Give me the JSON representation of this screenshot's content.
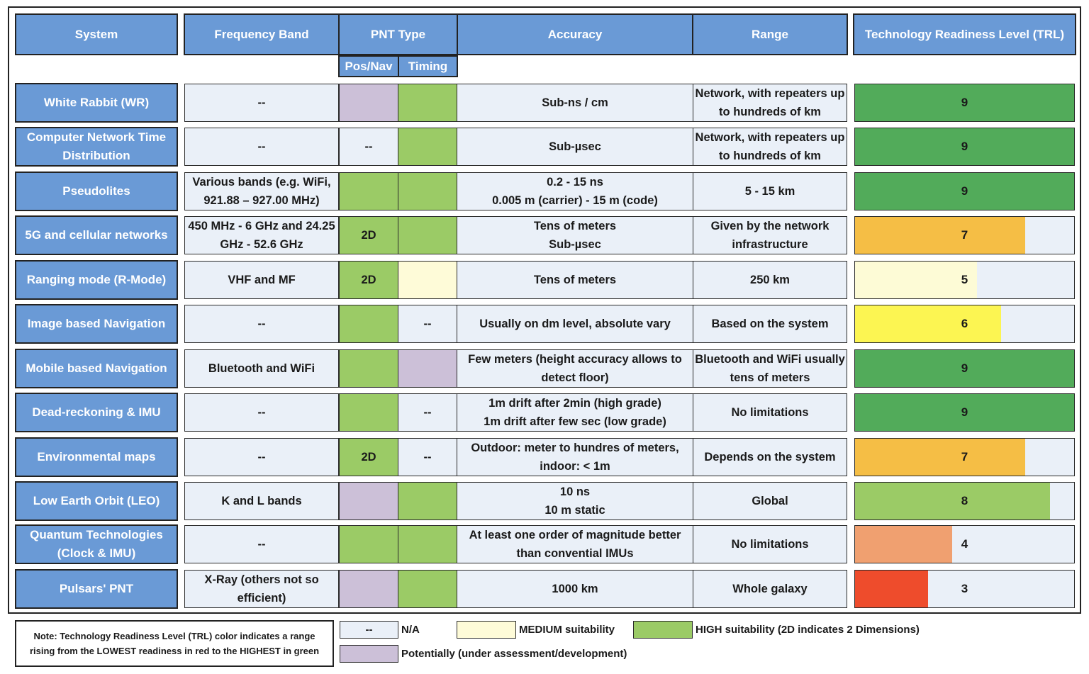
{
  "headers": {
    "system": "System",
    "frequency": "Frequency Band",
    "pnt_type": "PNT Type",
    "pos_nav": "Pos/Nav",
    "timing": "Timing",
    "accuracy": "Accuracy",
    "range": "Range",
    "trl": "Technology Readiness Level (TRL)"
  },
  "colors": {
    "na": "#eaf0f8",
    "medium": "#fefbd8",
    "high": "#9bcb66",
    "potential": "#ccc0d8",
    "header": "#6a9ad6"
  },
  "rows": [
    {
      "system": "White Rabbit (WR)",
      "frequency": "--",
      "pos": {
        "s": "potential",
        "t": ""
      },
      "timing": {
        "s": "high",
        "t": ""
      },
      "accuracy": "Sub-ns / cm",
      "range": "Network, with repeaters up to hundreds of km",
      "trl": 9,
      "trl_color": "#52ab5a"
    },
    {
      "system": "Computer Network Time Distribution",
      "frequency": "--",
      "pos": {
        "s": "na",
        "t": "--"
      },
      "timing": {
        "s": "high",
        "t": ""
      },
      "accuracy": "Sub-µsec",
      "range": "Network, with repeaters up to hundreds of km",
      "trl": 9,
      "trl_color": "#52ab5a"
    },
    {
      "system": "Pseudolites",
      "frequency": "Various bands (e.g. WiFi, 921.88 – 927.00 MHz)",
      "pos": {
        "s": "high",
        "t": ""
      },
      "timing": {
        "s": "high",
        "t": ""
      },
      "accuracy": "0.2 - 15 ns\n0.005 m (carrier) - 15 m (code)",
      "range": "5 - 15 km",
      "trl": 9,
      "trl_color": "#52ab5a"
    },
    {
      "system": "5G and cellular networks",
      "frequency": "450 MHz - 6 GHz and 24.25 GHz - 52.6 GHz",
      "pos": {
        "s": "high",
        "t": "2D"
      },
      "timing": {
        "s": "high",
        "t": ""
      },
      "accuracy": "Tens of meters\nSub-µsec",
      "range": "Given by the network infrastructure",
      "trl": 7,
      "trl_color": "#f5be45"
    },
    {
      "system": "Ranging mode (R-Mode)",
      "frequency": "VHF and MF",
      "pos": {
        "s": "high",
        "t": "2D"
      },
      "timing": {
        "s": "medium",
        "t": ""
      },
      "accuracy": "Tens of meters",
      "range": "250 km",
      "trl": 5,
      "trl_color": "#fdfbd6"
    },
    {
      "system": "Image based Navigation",
      "frequency": "--",
      "pos": {
        "s": "high",
        "t": ""
      },
      "timing": {
        "s": "na",
        "t": "--"
      },
      "accuracy": "Usually on dm level, absolute vary",
      "range": "Based on the system",
      "trl": 6,
      "trl_color": "#fcf552"
    },
    {
      "system": "Mobile based Navigation",
      "frequency": "Bluetooth and WiFi",
      "pos": {
        "s": "high",
        "t": ""
      },
      "timing": {
        "s": "potential",
        "t": ""
      },
      "accuracy": "Few meters (height accuracy allows to detect floor)",
      "range": "Bluetooth and WiFi usually tens of meters",
      "trl": 9,
      "trl_color": "#52ab5a"
    },
    {
      "system": "Dead-reckoning  & IMU",
      "frequency": "--",
      "pos": {
        "s": "high",
        "t": ""
      },
      "timing": {
        "s": "na",
        "t": "--"
      },
      "accuracy": "1m drift after 2min (high grade)\n1m drift after few sec (low grade)",
      "range": "No limitations",
      "trl": 9,
      "trl_color": "#52ab5a"
    },
    {
      "system": "Environmental maps",
      "frequency": "--",
      "pos": {
        "s": "high",
        "t": "2D"
      },
      "timing": {
        "s": "na",
        "t": "--"
      },
      "accuracy": "Outdoor: meter to hundres of meters,\nindoor: < 1m",
      "range": "Depends on the system",
      "trl": 7,
      "trl_color": "#f5be45"
    },
    {
      "system": "Low Earth Orbit (LEO)",
      "frequency": "K and L bands",
      "pos": {
        "s": "potential",
        "t": ""
      },
      "timing": {
        "s": "high",
        "t": ""
      },
      "accuracy": "10 ns\n10 m static",
      "range": "Global",
      "trl": 8,
      "trl_color": "#9bcb66"
    },
    {
      "system": "Quantum Technologies (Clock & IMU)",
      "frequency": "--",
      "pos": {
        "s": "high",
        "t": ""
      },
      "timing": {
        "s": "high",
        "t": ""
      },
      "accuracy": "At least one order of magnitude better than convential IMUs",
      "range": "No limitations",
      "trl": 4,
      "trl_color": "#f0a070"
    },
    {
      "system": "Pulsars' PNT",
      "frequency": "X-Ray (others not so efficient)",
      "pos": {
        "s": "potential",
        "t": ""
      },
      "timing": {
        "s": "high",
        "t": ""
      },
      "accuracy": "1000 km",
      "range": "Whole galaxy",
      "trl": 3,
      "trl_color": "#ee4c2c"
    }
  ],
  "trl_max": 9,
  "note": "Note: Technology Readiness Level (TRL) color indicates a range rising from the LOWEST readiness in red to the HIGHEST in green",
  "legend": {
    "na_symbol": "--",
    "na": "N/A",
    "medium": "MEDIUM suitability",
    "high": "HIGH suitability (2D indicates 2 Dimensions)",
    "potential": "Potentially (under assessment/development)"
  }
}
